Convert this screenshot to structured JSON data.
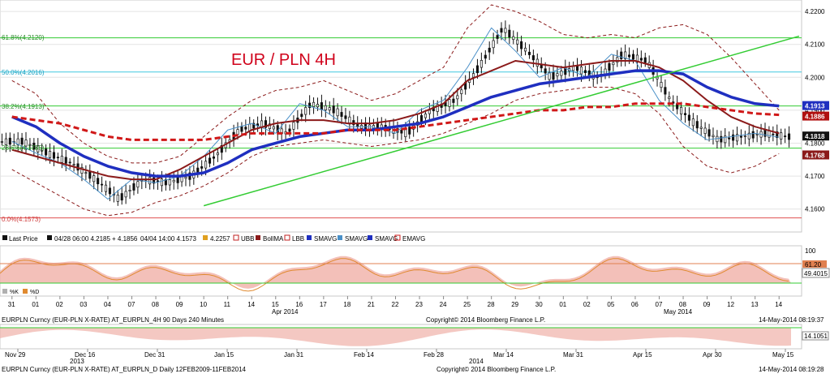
{
  "title": "EUR / PLN 4H",
  "colors": {
    "title": "#d0021b",
    "candle": "#111111",
    "sma_thin": "#4a90c8",
    "sma_mid": "#8b1a1a",
    "sma_thick": "#1f2fc0",
    "ema_dashed": "#d01818",
    "bands": "#8b1a1a",
    "trendline": "#33cc33",
    "fib": "#33cc33",
    "fib_cyan": "#40c8e0",
    "fib_bottom": "#e05050",
    "rsi_line": "#e08a30",
    "rsi_fill_red": "#f0b0a8",
    "rsi_fill_gray": "#c8c8c8"
  },
  "fib_labels": {
    "f1": "61.8%(4.2120)",
    "f2": "50.0%(4.2016)",
    "f3": "38.2%(4.1913)",
    "f4": "23.6%(4.1785)",
    "f5": "0.0%(4.1573)"
  },
  "price_ticks": [
    "4.2200",
    "4.2100",
    "4.2000",
    "4.1900",
    "4.1800",
    "4.1700",
    "4.1600"
  ],
  "price_flags": [
    {
      "id": "flag-4-1913",
      "value": "4.1913",
      "bg": "#1f2fc0",
      "fg": "#ffffff"
    },
    {
      "id": "flag-4-1886",
      "value": "4.1886",
      "bg": "#b01010",
      "fg": "#ffffff"
    },
    {
      "id": "flag-4-1818",
      "value": "4.1818",
      "bg": "#111111",
      "fg": "#ffffff"
    },
    {
      "id": "flag-4-1768",
      "value": "4.1768",
      "bg": "#8b1a1a",
      "fg": "#ffffff"
    }
  ],
  "legend": {
    "last_price": "Last Price",
    "last_price_detail": "04/28 06:00 4.2185",
    "plus": "+ 4.1856",
    "low_detail": "04/04 14:00 4.1573",
    "val_4_2257": "4.2257",
    "ubb": "UBB",
    "bollma": "BollMA",
    "lbb": "LBB",
    "smavg1": "SMAVG",
    "smavg2": "SMAVG",
    "smavg3": "SMAVG",
    "emavg": "EMAVG"
  },
  "rsi": {
    "ticks": [
      "100",
      "49.4015"
    ],
    "level_label": "61.20",
    "legend_k": "%K",
    "legend_d": "%D"
  },
  "top_x_axis": {
    "days": [
      "31",
      "01",
      "02",
      "03",
      "04",
      "07",
      "08",
      "09",
      "10",
      "11",
      "14",
      "15",
      "16",
      "17",
      "18",
      "21",
      "22",
      "23",
      "24",
      "25",
      "28",
      "29",
      "30",
      "01",
      "02",
      "05",
      "06",
      "07",
      "08",
      "09",
      "12",
      "13",
      "14"
    ],
    "month_apr": "Apr 2014",
    "month_may": "May 2014"
  },
  "footer_top": {
    "left": "EURPLN Curncy (EUR-PLN X-RATE) AT_EURPLN_4H 90 Days 240 Minutes",
    "center": "Copyright© 2014 Bloomberg Finance L.P.",
    "right": "14-May-2014 08:19:37"
  },
  "bottom_panel": {
    "value": "14.1051"
  },
  "bottom_x_axis": {
    "labels": [
      "Nov 29",
      "Dec 16",
      "Dec 31",
      "Jan 15",
      "Jan 31",
      "Feb 14",
      "Feb 28",
      "Mar 14",
      "Mar 31",
      "Apr 15",
      "Apr 30",
      "May 15"
    ],
    "year_2013": "2013",
    "year_2014": "2014"
  },
  "footer_bottom": {
    "left": "EURPLN Curncy (EUR-PLN X-RATE) AT_EURPLN_D  Daily 12FEB2009-11FEB2014",
    "center": "Copyright© 2014 Bloomberg Finance L.P.",
    "right": "14-May-2014 08:19:28"
  },
  "chart_data": {
    "type": "line",
    "title": "EUR / PLN 4H",
    "xlabel": "",
    "ylabel": "",
    "ylim": [
      4.155,
      4.2215
    ],
    "x": [
      "Mar 31",
      "Apr 01",
      "Apr 02",
      "Apr 03",
      "Apr 04",
      "Apr 07",
      "Apr 08",
      "Apr 09",
      "Apr 10",
      "Apr 11",
      "Apr 14",
      "Apr 15",
      "Apr 16",
      "Apr 17",
      "Apr 18",
      "Apr 21",
      "Apr 22",
      "Apr 23",
      "Apr 24",
      "Apr 25",
      "Apr 28",
      "Apr 29",
      "Apr 30",
      "May 01",
      "May 02",
      "May 05",
      "May 06",
      "May 07",
      "May 08",
      "May 09",
      "May 12",
      "May 13",
      "May 14"
    ],
    "series": [
      {
        "name": "Last Price",
        "values": [
          4.1805,
          4.177,
          4.174,
          4.169,
          4.163,
          4.169,
          4.168,
          4.17,
          4.176,
          4.184,
          4.186,
          4.183,
          4.192,
          4.19,
          4.185,
          4.185,
          4.183,
          4.19,
          4.193,
          4.203,
          4.215,
          4.208,
          4.2,
          4.203,
          4.2,
          4.207,
          4.205,
          4.193,
          4.186,
          4.181,
          4.182,
          4.183,
          4.1818
        ]
      },
      {
        "name": "UBB",
        "values": [
          4.199,
          4.195,
          4.186,
          4.18,
          4.176,
          4.174,
          4.174,
          4.176,
          4.182,
          4.188,
          4.193,
          4.196,
          4.197,
          4.199,
          4.196,
          4.193,
          4.195,
          4.199,
          4.203,
          4.215,
          4.222,
          4.22,
          4.217,
          4.213,
          4.212,
          4.213,
          4.212,
          4.215,
          4.216,
          4.213,
          4.206,
          4.198,
          4.19
        ]
      },
      {
        "name": "LBB",
        "values": [
          4.172,
          4.168,
          4.164,
          4.16,
          4.158,
          4.159,
          4.162,
          4.164,
          4.167,
          4.171,
          4.176,
          4.179,
          4.18,
          4.181,
          4.18,
          4.179,
          4.18,
          4.181,
          4.183,
          4.186,
          4.189,
          4.193,
          4.195,
          4.196,
          4.197,
          4.197,
          4.195,
          4.189,
          4.179,
          4.173,
          4.171,
          4.173,
          4.1768
        ]
      },
      {
        "name": "BollMA",
        "values": [
          4.178,
          4.176,
          4.174,
          4.172,
          4.17,
          4.169,
          4.169,
          4.172,
          4.176,
          4.18,
          4.184,
          4.186,
          4.187,
          4.187,
          4.186,
          4.186,
          4.187,
          4.189,
          4.192,
          4.199,
          4.202,
          4.205,
          4.204,
          4.203,
          4.204,
          4.205,
          4.205,
          4.203,
          4.199,
          4.193,
          4.188,
          4.185,
          4.183
        ]
      },
      {
        "name": "SMAVG",
        "values": [
          4.188,
          4.185,
          4.18,
          4.176,
          4.173,
          4.171,
          4.17,
          4.17,
          4.171,
          4.174,
          4.178,
          4.18,
          4.182,
          4.183,
          4.184,
          4.184,
          4.185,
          4.186,
          4.188,
          4.191,
          4.194,
          4.196,
          4.198,
          4.199,
          4.2,
          4.201,
          4.202,
          4.202,
          4.201,
          4.197,
          4.194,
          4.192,
          4.1913
        ]
      },
      {
        "name": "EMAVG",
        "values": [
          4.188,
          4.187,
          4.186,
          4.184,
          4.182,
          4.181,
          4.181,
          4.181,
          4.181,
          4.182,
          4.183,
          4.183,
          4.183,
          4.183,
          4.184,
          4.184,
          4.184,
          4.185,
          4.186,
          4.187,
          4.188,
          4.189,
          4.19,
          4.19,
          4.191,
          4.191,
          4.192,
          4.192,
          4.192,
          4.191,
          4.19,
          4.189,
          4.1886
        ]
      }
    ],
    "trendline": {
      "from": [
        "Apr 10",
        4.161
      ],
      "to": [
        "May 14",
        4.2125
      ]
    },
    "fib_levels": [
      4.212,
      4.2016,
      4.1913,
      4.1785,
      4.1573
    ]
  }
}
